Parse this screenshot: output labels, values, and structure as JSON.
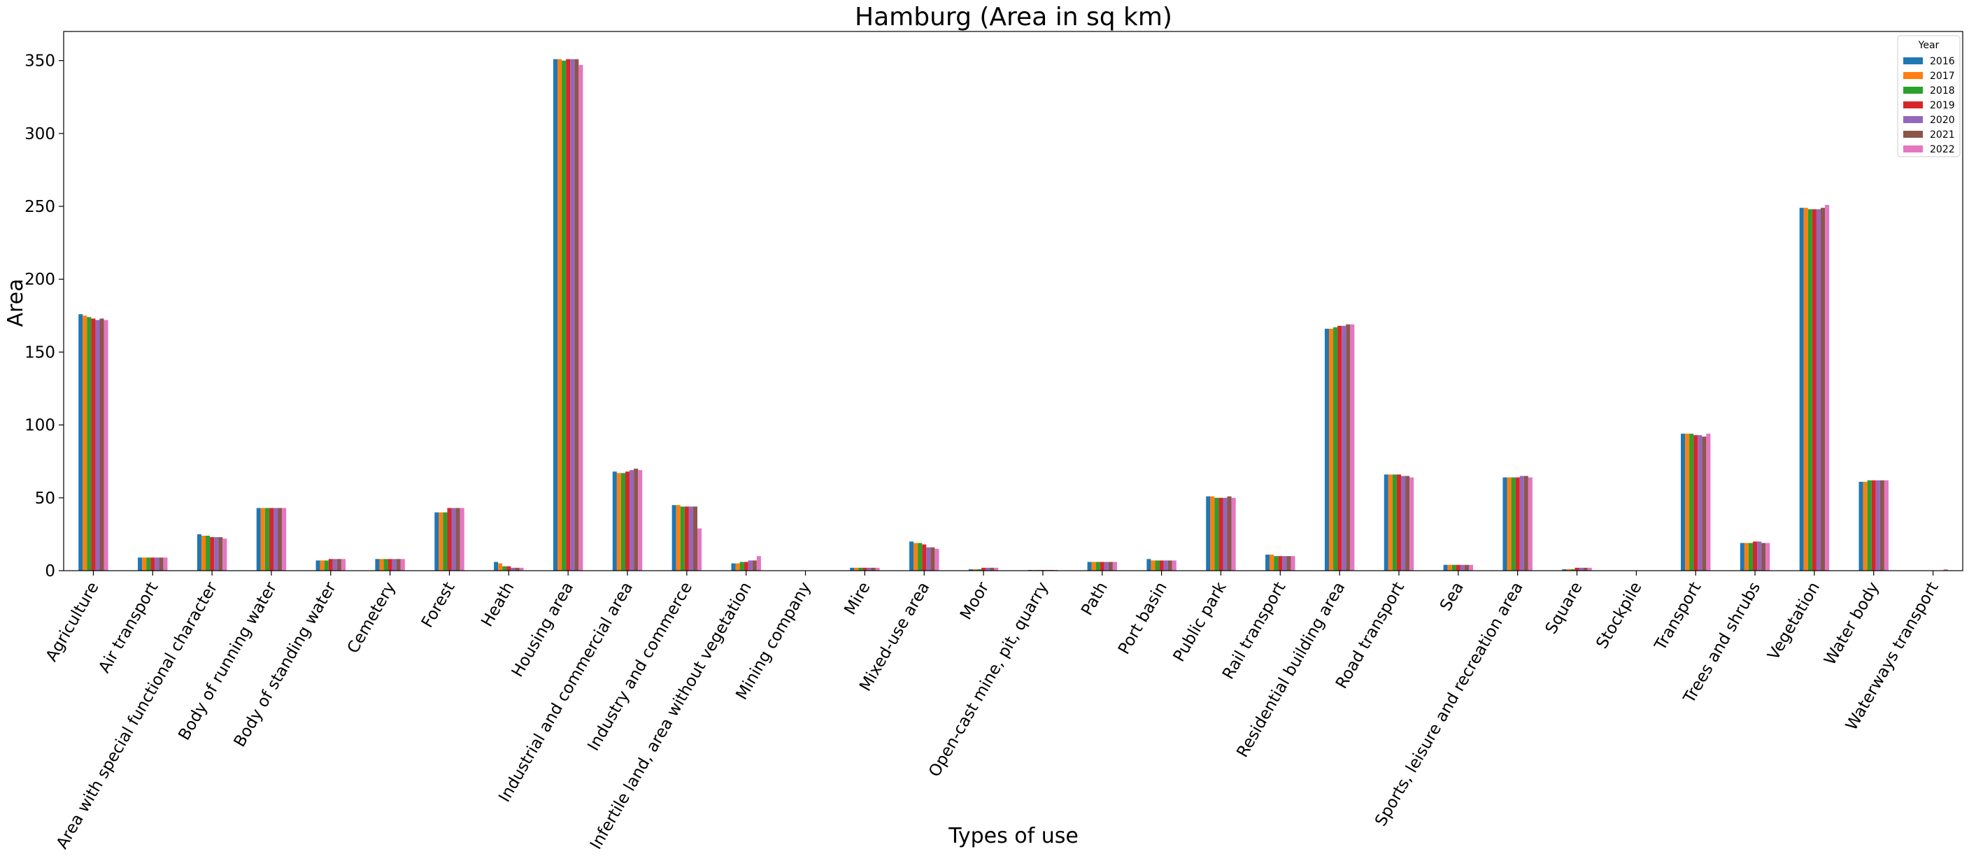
{
  "chart_data": {
    "type": "bar",
    "title": "Hamburg (Area in sq km)",
    "xlabel": "Types of use",
    "ylabel": "Area",
    "ylim": [
      0,
      370
    ],
    "yticks": [
      0,
      50,
      100,
      150,
      200,
      250,
      300,
      350
    ],
    "grid": false,
    "legend": {
      "title": "Year",
      "placement": "top-right"
    },
    "categories": [
      "Agriculture",
      "Air transport",
      "Area with special functional character",
      "Body of running water",
      "Body of standing water",
      "Cemetery",
      "Forest",
      "Heath",
      "Housing area",
      "Industrial and commercial area",
      "Industry and commerce",
      "Infertile land, area without vegetation",
      "Mining company",
      "Mire",
      "Mixed-use area",
      "Moor",
      "Open-cast mine, pit, quarry",
      "Path",
      "Port basin",
      "Public park",
      "Rail transport",
      "Residential building area",
      "Road transport",
      "Sea",
      "Sports, leisure and recreation area",
      "Square",
      "Stockpile",
      "Transport",
      "Trees and shrubs",
      "Vegetation",
      "Water body",
      "Waterways transport"
    ],
    "colors": [
      "#1f77b4",
      "#ff7f0e",
      "#2ca02c",
      "#d62728",
      "#9467bd",
      "#8c564b",
      "#e377c2"
    ],
    "series": [
      {
        "name": "2016",
        "values": [
          176,
          9,
          25,
          43,
          7,
          8,
          40,
          6,
          351,
          68,
          45,
          5,
          0,
          2,
          20,
          1,
          0.5,
          6,
          8,
          51,
          11,
          166,
          66,
          4,
          64,
          1,
          0,
          94,
          19,
          249,
          61,
          0
        ]
      },
      {
        "name": "2017",
        "values": [
          175,
          9,
          24,
          43,
          7,
          8,
          40,
          5,
          351,
          67,
          45,
          5,
          0,
          2,
          19,
          1,
          0.5,
          6,
          7,
          51,
          11,
          166,
          66,
          4,
          64,
          1,
          0,
          94,
          19,
          249,
          61,
          0
        ]
      },
      {
        "name": "2018",
        "values": [
          174,
          9,
          24,
          43,
          7,
          8,
          40,
          3,
          350,
          67,
          44,
          6,
          0,
          2,
          19,
          1,
          0.5,
          6,
          7,
          50,
          10,
          167,
          66,
          4,
          64,
          1,
          0,
          94,
          19,
          248,
          62,
          0
        ]
      },
      {
        "name": "2019",
        "values": [
          173,
          9,
          23,
          43,
          8,
          8,
          43,
          3,
          351,
          68,
          44,
          6,
          0,
          2,
          18,
          2,
          0.5,
          6,
          7,
          50,
          10,
          168,
          66,
          4,
          64,
          2,
          0,
          93,
          20,
          248,
          62,
          0
        ]
      },
      {
        "name": "2020",
        "values": [
          172,
          9,
          23,
          43,
          8,
          8,
          43,
          2,
          351,
          69,
          44,
          7,
          0,
          2,
          16,
          2,
          0.5,
          6,
          7,
          50,
          10,
          168,
          65,
          4,
          65,
          2,
          0,
          93,
          20,
          248,
          62,
          0
        ]
      },
      {
        "name": "2021",
        "values": [
          173,
          9,
          23,
          43,
          8,
          8,
          43,
          2,
          351,
          70,
          44,
          7,
          0,
          2,
          16,
          2,
          0.5,
          6,
          7,
          51,
          10,
          169,
          65,
          4,
          65,
          2,
          0,
          92,
          19,
          249,
          62,
          0
        ]
      },
      {
        "name": "2022",
        "values": [
          172,
          9,
          22,
          43,
          8,
          8,
          43,
          2,
          347,
          69,
          29,
          10,
          0,
          2,
          15,
          2,
          0.5,
          6,
          7,
          50,
          10,
          169,
          64,
          4,
          64,
          2,
          0,
          94,
          19,
          251,
          62,
          1
        ]
      }
    ]
  }
}
